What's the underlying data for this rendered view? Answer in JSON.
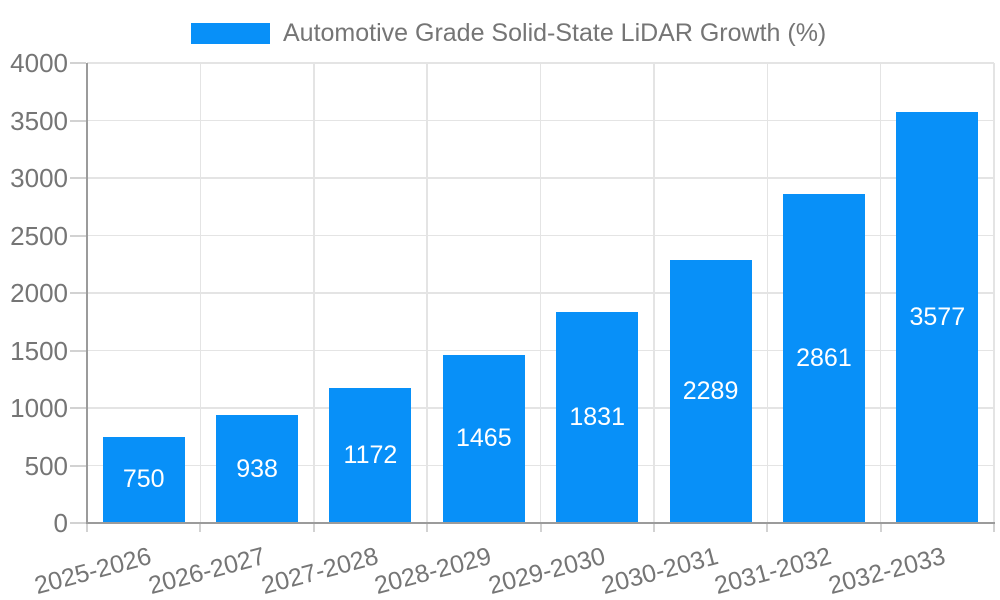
{
  "chart_data": {
    "type": "bar",
    "title": "",
    "legend_label": "Automotive Grade Solid-State LiDAR Growth (%)",
    "legend_position": "top",
    "categories": [
      "2025-2026",
      "2026-2027",
      "2027-2028",
      "2028-2029",
      "2029-2030",
      "2030-2031",
      "2031-2032",
      "2032-2033"
    ],
    "values": [
      750,
      938,
      1172,
      1465,
      1831,
      2289,
      2861,
      3577
    ],
    "value_labels_shown": true,
    "xlabel": "",
    "ylabel": "",
    "ylim": [
      0,
      4000
    ],
    "yticks": [
      0,
      500,
      1000,
      1500,
      2000,
      2500,
      3000,
      3500,
      4000
    ],
    "grid": true,
    "grid_vertical": true,
    "x_label_rotation_deg": -15,
    "colors": {
      "bar": "#0890f8",
      "grid": "#e4e4e4",
      "axis_line": "#9b9b9b",
      "tick": "#d2d2d2",
      "axis_text": "#757575",
      "value_text": "#ffffff",
      "background": "#ffffff"
    }
  }
}
